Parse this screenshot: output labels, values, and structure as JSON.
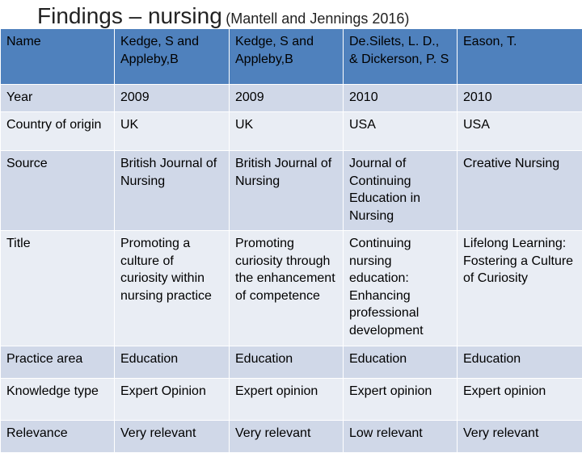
{
  "header": {
    "title": "Findings – nursing",
    "subtitle": "(Mantell and Jennings 2016)"
  },
  "table": {
    "header": [
      "Name",
      "Kedge, S and Appleby,B",
      "Kedge, S and Appleby,B",
      "De.Silets, L. D., & Dickerson, P. S",
      "Eason, T."
    ],
    "rows": [
      [
        "Year",
        "2009",
        "2009",
        "2010",
        "2010"
      ],
      [
        "Country of origin",
        "UK",
        "UK",
        "USA",
        "USA"
      ],
      [
        "Source",
        "British Journal of Nursing",
        "British Journal of Nursing",
        "Journal of Continuing Education in Nursing",
        "Creative Nursing"
      ],
      [
        "Title",
        "Promoting a culture of curiosity within nursing practice",
        "Promoting curiosity through the enhancement of competence",
        "Continuing nursing education: Enhancing professional development",
        "Lifelong Learning: Fostering a Culture of Curiosity"
      ],
      [
        "Practice area",
        "Education",
        "Education",
        "Education",
        "Education"
      ],
      [
        "Knowledge type",
        "Expert Opinion",
        "Expert opinion",
        "Expert opinion",
        "Expert opinion"
      ],
      [
        "Relevance",
        "Very relevant",
        "Very relevant",
        "Low relevant",
        "Very relevant"
      ]
    ]
  }
}
